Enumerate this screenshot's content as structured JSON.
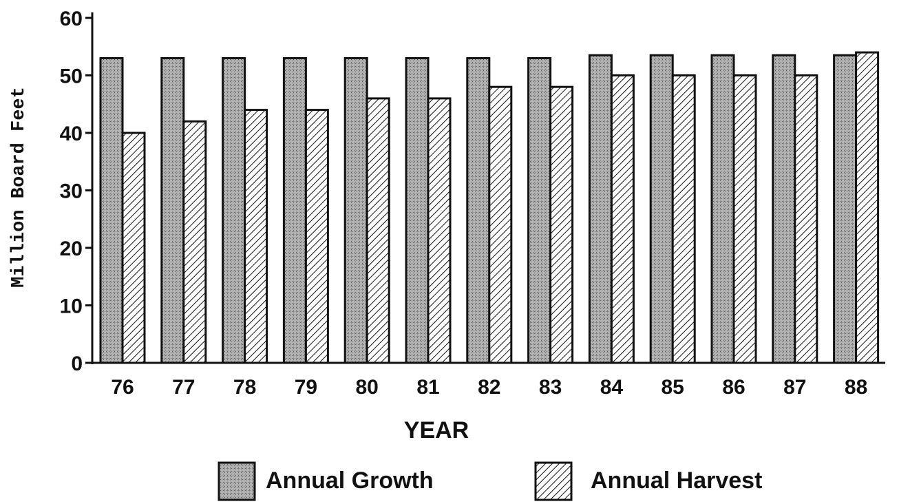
{
  "chart_data": {
    "type": "bar",
    "title": "",
    "xlabel": "YEAR",
    "ylabel": "Million Board Feet",
    "ylim": [
      0,
      60
    ],
    "yticks": [
      0,
      10,
      20,
      30,
      40,
      50,
      60
    ],
    "grid": false,
    "legend_position": "bottom",
    "categories": [
      "76",
      "77",
      "78",
      "79",
      "80",
      "81",
      "82",
      "83",
      "84",
      "85",
      "86",
      "87",
      "88"
    ],
    "series": [
      {
        "name": "Annual Growth",
        "pattern": "stipple",
        "color": "#9a9a9a",
        "values": [
          53,
          53,
          53,
          53,
          53,
          53,
          53,
          53,
          53.5,
          53.5,
          53.5,
          53.5,
          53.5
        ]
      },
      {
        "name": "Annual Harvest",
        "pattern": "diagonal-hatch",
        "color": "#ffffff",
        "values": [
          40,
          42,
          44,
          44,
          46,
          46,
          48,
          48,
          50,
          50,
          50,
          50,
          54
        ]
      }
    ]
  }
}
